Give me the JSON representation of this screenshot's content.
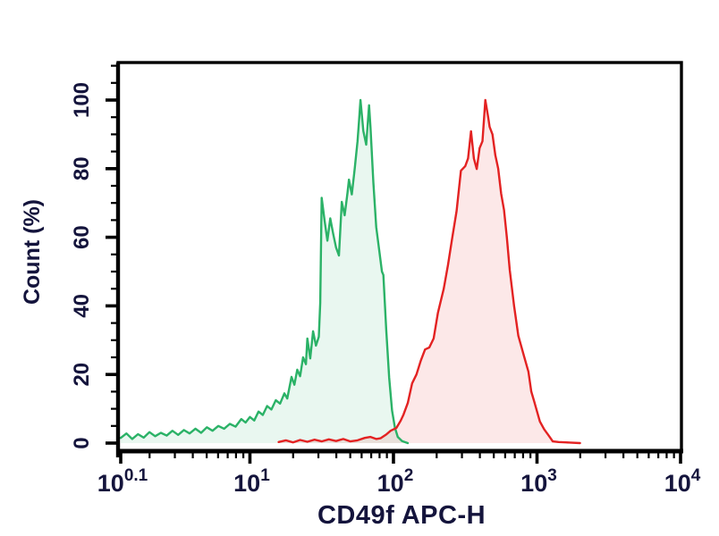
{
  "figure": {
    "background": "#ffffff",
    "axis_color": "#000000",
    "label_color": "#14143c"
  },
  "chart_data": {
    "type": "area",
    "subtype": "flow-cytometry-overlay-histogram",
    "title": "",
    "xlabel": "CD49f APC-H",
    "ylabel": "Count (%)",
    "x_scale": "log10",
    "xlim_log": [
      0.1,
      4
    ],
    "ylim": [
      0,
      100
    ],
    "grid": "off",
    "legend": "none",
    "x_ticks": [
      {
        "base": "10",
        "exp": "0.1",
        "log": 0.1
      },
      {
        "base": "10",
        "exp": "1",
        "log": 1
      },
      {
        "base": "10",
        "exp": "2",
        "log": 2
      },
      {
        "base": "10",
        "exp": "3",
        "log": 3
      },
      {
        "base": "10",
        "exp": "4",
        "log": 4
      }
    ],
    "y_major_ticks": [
      0,
      20,
      40,
      60,
      80,
      100
    ],
    "y_minor_step": 5,
    "y_minor_max": 110,
    "series": [
      {
        "name": "green-histogram",
        "color": "#2bb267",
        "fill_rgba": "rgba(43,178,103,0.10)",
        "peak_log10": 1.77,
        "peak_percent": 100,
        "points": [
          [
            0.1,
            1.5
          ],
          [
            0.14,
            2.8
          ],
          [
            0.18,
            1.2
          ],
          [
            0.22,
            2.6
          ],
          [
            0.26,
            1.6
          ],
          [
            0.3,
            3.2
          ],
          [
            0.34,
            2.0
          ],
          [
            0.38,
            3.0
          ],
          [
            0.42,
            2.2
          ],
          [
            0.46,
            3.6
          ],
          [
            0.5,
            2.4
          ],
          [
            0.54,
            3.8
          ],
          [
            0.58,
            2.8
          ],
          [
            0.62,
            4.2
          ],
          [
            0.66,
            3.0
          ],
          [
            0.7,
            4.6
          ],
          [
            0.74,
            3.6
          ],
          [
            0.78,
            5.0
          ],
          [
            0.82,
            4.2
          ],
          [
            0.86,
            5.6
          ],
          [
            0.9,
            4.8
          ],
          [
            0.94,
            7.0
          ],
          [
            0.97,
            6.0
          ],
          [
            1.0,
            7.6
          ],
          [
            1.03,
            6.6
          ],
          [
            1.06,
            9.2
          ],
          [
            1.09,
            8.2
          ],
          [
            1.12,
            10.8
          ],
          [
            1.15,
            9.8
          ],
          [
            1.18,
            12.5
          ],
          [
            1.21,
            11.5
          ],
          [
            1.24,
            14.5
          ],
          [
            1.26,
            13.0
          ],
          [
            1.29,
            19.3
          ],
          [
            1.31,
            17.0
          ],
          [
            1.33,
            21.4
          ],
          [
            1.35,
            19.5
          ],
          [
            1.37,
            25.0
          ],
          [
            1.39,
            23.0
          ],
          [
            1.4,
            30.5
          ],
          [
            1.42,
            24.7
          ],
          [
            1.44,
            32.6
          ],
          [
            1.46,
            28.4
          ],
          [
            1.48,
            31.0
          ],
          [
            1.49,
            40.9
          ],
          [
            1.5,
            71.5
          ],
          [
            1.52,
            65.0
          ],
          [
            1.54,
            59.0
          ],
          [
            1.56,
            65.5
          ],
          [
            1.58,
            61.0
          ],
          [
            1.6,
            57.0
          ],
          [
            1.62,
            54.7
          ],
          [
            1.64,
            70.3
          ],
          [
            1.66,
            66.4
          ],
          [
            1.68,
            73.0
          ],
          [
            1.69,
            76.8
          ],
          [
            1.71,
            72.5
          ],
          [
            1.73,
            79.9
          ],
          [
            1.75,
            88.0
          ],
          [
            1.76,
            94.0
          ],
          [
            1.77,
            100.0
          ],
          [
            1.79,
            91.0
          ],
          [
            1.81,
            87.0
          ],
          [
            1.83,
            98.5
          ],
          [
            1.84,
            92.0
          ],
          [
            1.86,
            76.0
          ],
          [
            1.88,
            63.0
          ],
          [
            1.9,
            56.5
          ],
          [
            1.92,
            50.0
          ],
          [
            1.93,
            49.0
          ],
          [
            1.95,
            33.0
          ],
          [
            1.97,
            19.0
          ],
          [
            1.99,
            9.5
          ],
          [
            2.01,
            4.5
          ],
          [
            2.03,
            1.8
          ],
          [
            2.06,
            0.6
          ],
          [
            2.1,
            0.0
          ]
        ]
      },
      {
        "name": "red-histogram",
        "color": "#e32222",
        "fill_rgba": "rgba(227,34,34,0.105)",
        "peak_log10": 2.64,
        "peak_percent": 100,
        "points": [
          [
            1.2,
            0.3
          ],
          [
            1.25,
            0.8
          ],
          [
            1.3,
            0.2
          ],
          [
            1.35,
            0.9
          ],
          [
            1.4,
            0.4
          ],
          [
            1.45,
            1.0
          ],
          [
            1.5,
            0.5
          ],
          [
            1.55,
            1.1
          ],
          [
            1.6,
            0.6
          ],
          [
            1.65,
            1.2
          ],
          [
            1.7,
            0.5
          ],
          [
            1.75,
            0.8
          ],
          [
            1.8,
            1.5
          ],
          [
            1.84,
            1.8
          ],
          [
            1.88,
            1.2
          ],
          [
            1.91,
            1.4
          ],
          [
            1.95,
            2.5
          ],
          [
            1.98,
            3.6
          ],
          [
            2.02,
            4.4
          ],
          [
            2.05,
            6.5
          ],
          [
            2.07,
            8.3
          ],
          [
            2.1,
            11.7
          ],
          [
            2.13,
            17.4
          ],
          [
            2.16,
            20.0
          ],
          [
            2.19,
            24.0
          ],
          [
            2.22,
            27.3
          ],
          [
            2.25,
            27.9
          ],
          [
            2.28,
            30.5
          ],
          [
            2.31,
            38.0
          ],
          [
            2.35,
            45.0
          ],
          [
            2.38,
            52.0
          ],
          [
            2.41,
            60.0
          ],
          [
            2.44,
            67.7
          ],
          [
            2.47,
            79.4
          ],
          [
            2.5,
            80.7
          ],
          [
            2.52,
            83.0
          ],
          [
            2.54,
            90.9
          ],
          [
            2.56,
            83.0
          ],
          [
            2.58,
            79.9
          ],
          [
            2.6,
            86.0
          ],
          [
            2.62,
            88.0
          ],
          [
            2.64,
            100.0
          ],
          [
            2.66,
            95.0
          ],
          [
            2.67,
            92.2
          ],
          [
            2.69,
            90.0
          ],
          [
            2.71,
            83.9
          ],
          [
            2.73,
            80.0
          ],
          [
            2.75,
            72.7
          ],
          [
            2.77,
            68.0
          ],
          [
            2.79,
            59.9
          ],
          [
            2.81,
            50.5
          ],
          [
            2.84,
            40.1
          ],
          [
            2.87,
            31.3
          ],
          [
            2.91,
            25.3
          ],
          [
            2.94,
            20.8
          ],
          [
            2.96,
            15.0
          ],
          [
            2.98,
            12.2
          ],
          [
            3.02,
            6.3
          ],
          [
            3.05,
            4.0
          ],
          [
            3.08,
            2.3
          ],
          [
            3.11,
            0.5
          ],
          [
            3.15,
            0.3
          ],
          [
            3.2,
            0.2
          ],
          [
            3.3,
            0.0
          ]
        ]
      }
    ]
  }
}
